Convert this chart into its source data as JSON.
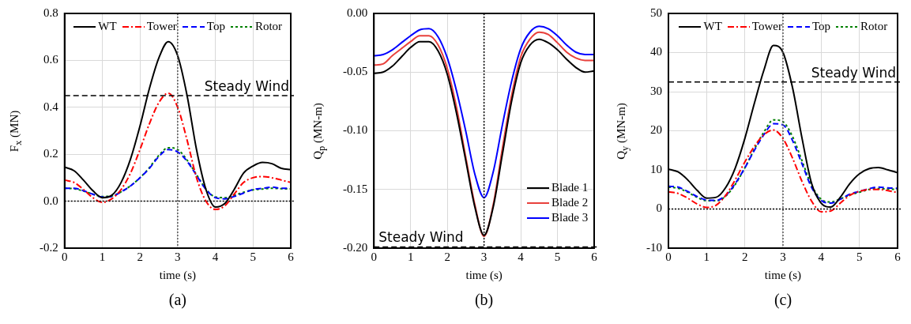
{
  "chart_data": [
    {
      "type": "line",
      "title": "(a)",
      "xlabel": "time (s)",
      "ylabel": "F$_{x}$ (MN)",
      "x": [
        0,
        0.25,
        0.5,
        0.75,
        1,
        1.25,
        1.5,
        1.75,
        2,
        2.25,
        2.5,
        2.75,
        3,
        3.25,
        3.5,
        3.75,
        4,
        4.25,
        4.5,
        4.75,
        5,
        5.25,
        5.5,
        5.75,
        6
      ],
      "series": [
        {
          "name": "WT",
          "color": "#000000",
          "line_style": "solid",
          "values": [
            0.145,
            0.13,
            0.09,
            0.045,
            0.015,
            0.025,
            0.08,
            0.18,
            0.32,
            0.48,
            0.61,
            0.68,
            0.62,
            0.45,
            0.22,
            0.05,
            -0.025,
            -0.01,
            0.05,
            0.12,
            0.15,
            0.165,
            0.16,
            0.14,
            0.135
          ]
        },
        {
          "name": "Tower",
          "color": "#ff0000",
          "line_style": "dashdot",
          "values": [
            0.09,
            0.08,
            0.05,
            0.015,
            -0.005,
            0.01,
            0.05,
            0.12,
            0.22,
            0.33,
            0.42,
            0.46,
            0.4,
            0.26,
            0.1,
            0.0,
            -0.035,
            -0.02,
            0.03,
            0.08,
            0.1,
            0.105,
            0.1,
            0.09,
            0.08
          ]
        },
        {
          "name": "Top",
          "color": "#0000ff",
          "line_style": "dashed",
          "values": [
            0.055,
            0.055,
            0.045,
            0.03,
            0.018,
            0.02,
            0.04,
            0.065,
            0.1,
            0.14,
            0.19,
            0.22,
            0.21,
            0.17,
            0.11,
            0.05,
            0.015,
            0.01,
            0.02,
            0.035,
            0.05,
            0.055,
            0.06,
            0.055,
            0.055
          ]
        },
        {
          "name": "Rotor",
          "color": "#008000",
          "line_style": "dotted",
          "values": [
            0.055,
            0.053,
            0.043,
            0.03,
            0.02,
            0.022,
            0.04,
            0.066,
            0.1,
            0.143,
            0.195,
            0.228,
            0.22,
            0.175,
            0.113,
            0.052,
            0.018,
            0.015,
            0.025,
            0.038,
            0.048,
            0.052,
            0.055,
            0.053,
            0.052
          ]
        }
      ],
      "xlim": [
        0,
        6
      ],
      "xticks": [
        0,
        1,
        2,
        3,
        4,
        5,
        6
      ],
      "ylim": [
        -0.2,
        0.8
      ],
      "yticks": [
        {
          "value": -0.2,
          "label": "-0.2"
        },
        {
          "value": 0,
          "label": "0.0"
        },
        {
          "value": 0.2,
          "label": "0.2"
        },
        {
          "value": 0.4,
          "label": "0.4"
        },
        {
          "value": 0.6,
          "label": "0.6"
        },
        {
          "value": 0.8,
          "label": "0.8"
        }
      ],
      "grid": true,
      "legend": "top",
      "ref_lines": [
        {
          "axis": "y",
          "value": 0.45,
          "label": "Steady Wind",
          "color": "#000000",
          "line_style": "dashed"
        },
        {
          "axis": "y",
          "value": 0,
          "color": "#000000",
          "line_style": "dotted"
        },
        {
          "axis": "x",
          "value": 3,
          "color": "#595959",
          "line_style": "dotted"
        }
      ]
    },
    {
      "type": "line",
      "title": "(b)",
      "xlabel": "time (s)",
      "ylabel": "Q$_{p}$ (MN-m)",
      "x": [
        0,
        0.25,
        0.5,
        0.75,
        1,
        1.25,
        1.5,
        1.75,
        2,
        2.25,
        2.5,
        2.75,
        3,
        3.25,
        3.5,
        3.75,
        4,
        4.25,
        4.5,
        4.75,
        5,
        5.25,
        5.5,
        5.75,
        6
      ],
      "series": [
        {
          "name": "Blade 1",
          "color": "#000000",
          "line_style": "solid",
          "values": [
            -0.051,
            -0.05,
            -0.045,
            -0.037,
            -0.029,
            -0.024,
            -0.024,
            -0.032,
            -0.052,
            -0.085,
            -0.125,
            -0.165,
            -0.189,
            -0.165,
            -0.12,
            -0.075,
            -0.042,
            -0.027,
            -0.022,
            -0.025,
            -0.031,
            -0.039,
            -0.046,
            -0.05,
            -0.049
          ]
        },
        {
          "name": "Blade 2",
          "color": "#e8413c",
          "line_style": "solid",
          "values": [
            -0.044,
            -0.043,
            -0.036,
            -0.03,
            -0.024,
            -0.019,
            -0.019,
            -0.027,
            -0.047,
            -0.08,
            -0.122,
            -0.163,
            -0.19,
            -0.163,
            -0.115,
            -0.07,
            -0.037,
            -0.022,
            -0.016,
            -0.018,
            -0.025,
            -0.033,
            -0.038,
            -0.04,
            -0.04
          ]
        },
        {
          "name": "Blade 3",
          "color": "#0000ff",
          "line_style": "solid",
          "values": [
            -0.036,
            -0.035,
            -0.031,
            -0.025,
            -0.019,
            -0.014,
            -0.013,
            -0.02,
            -0.038,
            -0.066,
            -0.1,
            -0.137,
            -0.157,
            -0.135,
            -0.095,
            -0.058,
            -0.03,
            -0.016,
            -0.011,
            -0.013,
            -0.019,
            -0.027,
            -0.033,
            -0.035,
            -0.035
          ]
        }
      ],
      "xlim": [
        0,
        6
      ],
      "xticks": [
        0,
        1,
        2,
        3,
        4,
        5,
        6
      ],
      "ylim": [
        -0.2,
        0
      ],
      "yticks": [
        {
          "value": -0.2,
          "label": "-0.20"
        },
        {
          "value": -0.15,
          "label": "-0.15"
        },
        {
          "value": -0.1,
          "label": "-0.10"
        },
        {
          "value": -0.05,
          "label": "-0.05"
        },
        {
          "value": 0,
          "label": "0.00"
        }
      ],
      "grid": true,
      "legend": "bottom right",
      "ref_lines": [
        {
          "axis": "y",
          "value": -0.199,
          "label": "Steady Wind",
          "color": "#000000",
          "line_style": "dashed"
        },
        {
          "axis": "x",
          "value": 3,
          "color": "#000000",
          "line_style": "dotted"
        }
      ]
    },
    {
      "type": "line",
      "title": "(c)",
      "xlabel": "time (s)",
      "ylabel": "Q$_{y}$ (MN-m)",
      "x": [
        0,
        0.25,
        0.5,
        0.75,
        1,
        1.25,
        1.5,
        1.75,
        2,
        2.25,
        2.5,
        2.75,
        3,
        3.25,
        3.5,
        3.75,
        4,
        4.25,
        4.5,
        4.75,
        5,
        5.25,
        5.5,
        5.75,
        6
      ],
      "series": [
        {
          "name": "WT",
          "color": "#000000",
          "line_style": "solid",
          "values": [
            10.2,
            9.5,
            7.5,
            4.8,
            2.8,
            3.0,
            5.5,
            10.5,
            18,
            27,
            35.5,
            41.8,
            40,
            31,
            18,
            6.5,
            1.5,
            0.5,
            3,
            6.5,
            9,
            10.3,
            10.6,
            10,
            9.3
          ]
        },
        {
          "name": "Tower",
          "color": "#ff0000",
          "line_style": "dashdot",
          "values": [
            4.4,
            4,
            2.8,
            1.3,
            0.4,
            1,
            3.5,
            7.5,
            12,
            16,
            19,
            20.2,
            18,
            13,
            7,
            2,
            -0.7,
            -0.5,
            1.5,
            3.5,
            4.5,
            5,
            5,
            4.7,
            4.2
          ]
        },
        {
          "name": "Top",
          "color": "#0000ff",
          "line_style": "dashed",
          "values": [
            5.8,
            5.6,
            4.5,
            3.2,
            2.3,
            2.2,
            3.5,
            6.5,
            10.5,
            15,
            19,
            21.8,
            21.5,
            17.5,
            11.5,
            5.5,
            2.2,
            1.5,
            2.5,
            3.8,
            4.5,
            5.2,
            5.6,
            5.4,
            5.3
          ]
        },
        {
          "name": "Rotor",
          "color": "#008000",
          "line_style": "dotted",
          "values": [
            5.6,
            5.3,
            4.3,
            3,
            2.1,
            2.1,
            3.3,
            6.3,
            10.5,
            15.3,
            19.7,
            22.8,
            22.3,
            18.5,
            12.3,
            6,
            2.5,
            1.8,
            2.6,
            3.6,
            4.3,
            5,
            5.2,
            5.1,
            5
          ]
        }
      ],
      "xlim": [
        0,
        6
      ],
      "xticks": [
        0,
        1,
        2,
        3,
        4,
        5,
        6
      ],
      "ylim": [
        -10,
        50
      ],
      "yticks": [
        -10,
        0,
        10,
        20,
        30,
        40,
        50
      ],
      "grid": true,
      "legend": "top",
      "ref_lines": [
        {
          "axis": "y",
          "value": 32.5,
          "label": "Steady Wind",
          "color": "#000000",
          "line_style": "dashed"
        },
        {
          "axis": "y",
          "value": 0,
          "color": "#000000",
          "line_style": "dotted"
        },
        {
          "axis": "x",
          "value": 3,
          "color": "#595959",
          "line_style": "dotted"
        }
      ]
    }
  ]
}
